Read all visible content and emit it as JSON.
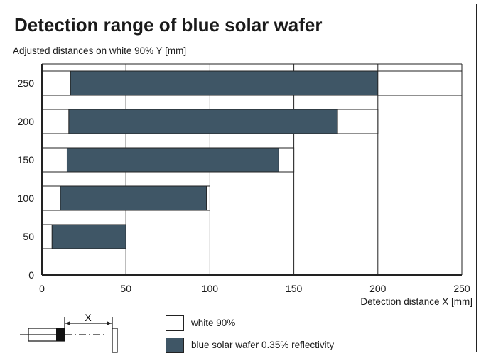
{
  "title": "Detection range of blue solar wafer",
  "subtitle": "Adjusted distances on white 90% Y [mm]",
  "legend": {
    "white_label": "white 90%",
    "blue_label": "blue solar wafer 0.35% reflectivity"
  },
  "schematic": {
    "label": "X"
  },
  "colors": {
    "blue": "#3f5666",
    "white": "#ffffff",
    "line": "#222222"
  },
  "chart_data": {
    "type": "bar",
    "orientation": "horizontal",
    "xlabel": "Detection distance X [mm]",
    "ylabel": "Adjusted distances on white 90% Y [mm]",
    "xlim": [
      0,
      250
    ],
    "ylim": [
      0,
      275
    ],
    "xticks": [
      0,
      50,
      100,
      150,
      200,
      250
    ],
    "yticks": [
      0,
      50,
      100,
      150,
      200,
      250
    ],
    "categories": [
      50,
      100,
      150,
      200,
      250
    ],
    "series": [
      {
        "name": "white 90%",
        "ranges": [
          [
            0,
            50
          ],
          [
            0,
            100
          ],
          [
            0,
            150
          ],
          [
            0,
            200
          ],
          [
            0,
            250
          ]
        ]
      },
      {
        "name": "blue solar wafer 0.35% reflectivity",
        "ranges": [
          [
            6,
            50
          ],
          [
            11,
            98
          ],
          [
            15,
            141
          ],
          [
            16,
            176
          ],
          [
            17,
            200
          ]
        ]
      }
    ],
    "grid": true
  }
}
